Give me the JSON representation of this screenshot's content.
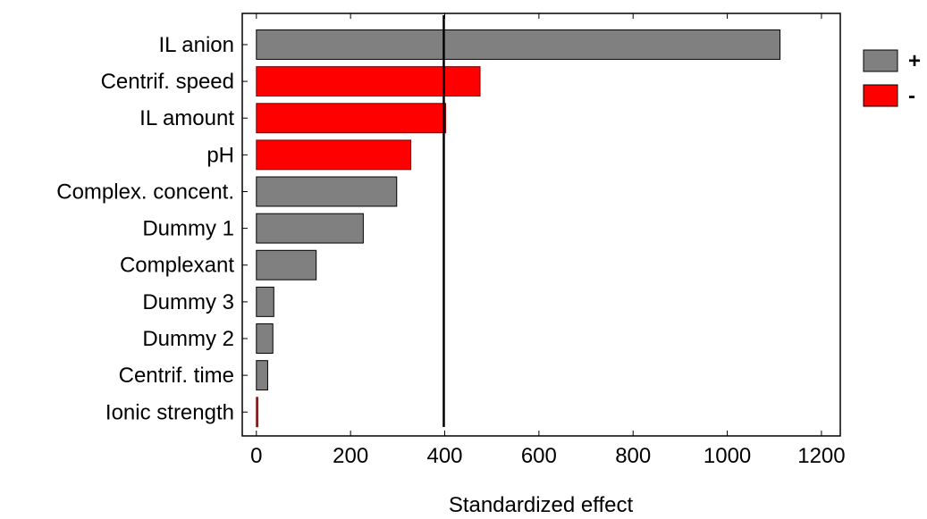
{
  "chart_data": {
    "type": "bar",
    "orientation": "horizontal",
    "title": "",
    "xlabel": "Standardized effect",
    "ylabel": "",
    "xlim": [
      -30,
      1240
    ],
    "xticks": [
      0,
      200,
      400,
      600,
      800,
      1000,
      1200
    ],
    "xtick_labels": [
      "0",
      "200",
      "400",
      "600",
      "800",
      "1000",
      "1200"
    ],
    "categories": [
      "IL anion",
      "Centrif. speed",
      "IL amount",
      "pH",
      "Complex. concent.",
      "Dummy 1",
      "Complexant",
      "Dummy 3",
      "Dummy 2",
      "Centrif. time",
      "Ionic strength"
    ],
    "values": [
      1112,
      475,
      402,
      328,
      298,
      227,
      127,
      37,
      35,
      24,
      3
    ],
    "signs": [
      "+",
      "-",
      "-",
      "-",
      "+",
      "+",
      "+",
      "+",
      "+",
      "+",
      "-"
    ],
    "reference_line": 398,
    "grid": false,
    "legend": {
      "position": "right",
      "entries": [
        {
          "label": "+",
          "color": "#808080"
        },
        {
          "label": "-",
          "color": "#ff0000"
        }
      ]
    },
    "colors": {
      "positive": "#808080",
      "negative": "#ff0000",
      "ref_line": "#000000"
    }
  }
}
